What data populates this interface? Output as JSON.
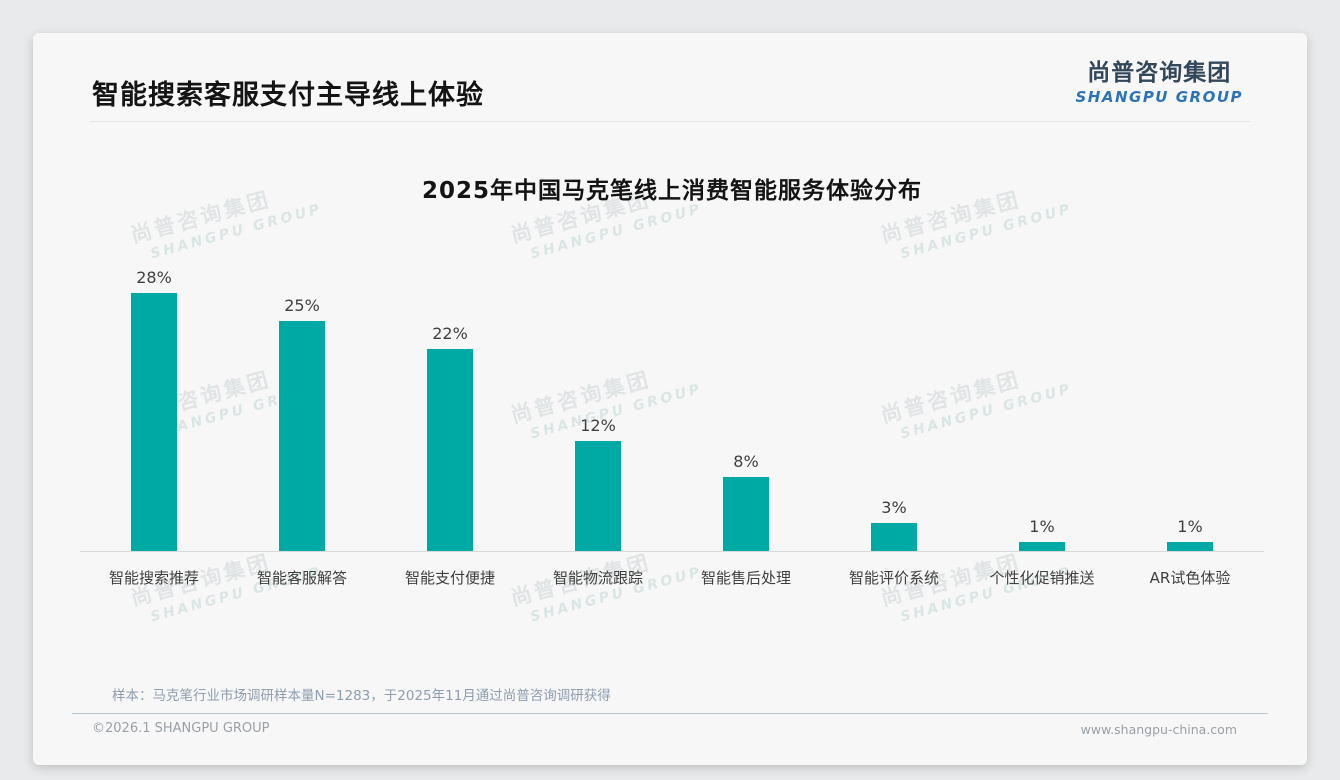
{
  "page": {
    "title": "智能搜索客服支付主导线上体验",
    "logo": {
      "cn": "尚普咨询集团",
      "en": "SHANGPU GROUP"
    },
    "watermark": {
      "cn": "尚普咨询集团",
      "en": "SHANGPU GROUP"
    },
    "footnote": "样本：马克笔行业市场调研样本量N=1283，于2025年11月通过尚普咨询调研获得",
    "footer": {
      "copyright": "©2026.1 SHANGPU GROUP",
      "website": "www.shangpu-china.com"
    }
  },
  "colors": {
    "bar": "#00AAA4",
    "logo_cn": "#33475B",
    "logo_en": "#2E74B5"
  },
  "chart_data": {
    "type": "bar",
    "title": "2025年中国马克笔线上消费智能服务体验分布",
    "categories": [
      "智能搜索推荐",
      "智能客服解答",
      "智能支付便捷",
      "智能物流跟踪",
      "智能售后处理",
      "智能评价系统",
      "个性化促销推送",
      "AR试色体验"
    ],
    "values": [
      28,
      25,
      22,
      12,
      8,
      3,
      1,
      1
    ],
    "value_labels": [
      "28%",
      "25%",
      "22%",
      "12%",
      "8%",
      "3%",
      "1%",
      "1%"
    ],
    "unit": "%",
    "ylim": [
      0,
      30
    ],
    "grid": false,
    "legend": false,
    "bar_color": "#00AAA4",
    "xlabel": "",
    "ylabel": ""
  }
}
